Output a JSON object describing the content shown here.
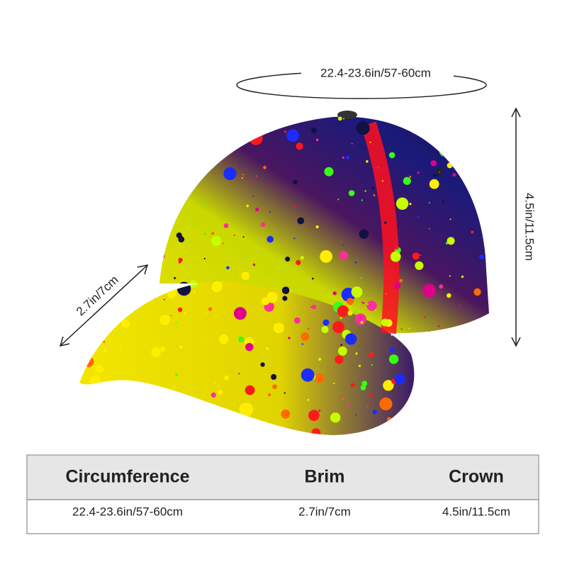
{
  "annotations": {
    "circumference": "22.4-23.6in/57-60cm",
    "height": "4.5in/11.5cm",
    "brim": "2.7in/7cm"
  },
  "table": {
    "header": [
      "Circumference",
      "Brim",
      "Crown"
    ],
    "rows": [
      [
        "22.4-23.6in/57-60cm",
        "2.7in/7cm",
        "4.5in/11.5cm"
      ]
    ]
  }
}
